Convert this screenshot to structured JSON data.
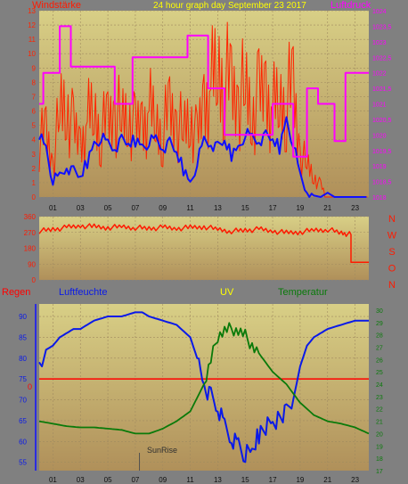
{
  "colors": {
    "background": "#808080",
    "panel_top": "#d8cf86",
    "panel_bottom": "#b0905a",
    "grid": "#a08a60",
    "wind": "#ff2400",
    "wind_avg": "#1010ff",
    "pressure": "#ff00ff",
    "direction": "#ff1a00",
    "humidity": "#0a1ae8",
    "temperature": "#0a7a0a",
    "rain": "#ff0000",
    "uv": "#ffff00",
    "title": "#ffff00"
  },
  "chart_data": [
    {
      "type": "line",
      "panel": "wind",
      "title": "24 hour graph day  September 23 2017",
      "left_label": "Windstärke",
      "right_label": "Luftdruck",
      "x_ticks": [
        "01",
        "03",
        "05",
        "07",
        "09",
        "11",
        "13",
        "15",
        "17",
        "19",
        "21",
        "23"
      ],
      "x_range": [
        0,
        24
      ],
      "y_left_ticks": [
        "0",
        "1",
        "2",
        "3",
        "4",
        "5",
        "6",
        "7",
        "8",
        "9",
        "10",
        "11",
        "12",
        "13"
      ],
      "y_left_range": [
        0,
        13
      ],
      "y_right_ticks": [
        "1018",
        "1018,5",
        "1019",
        "1019,5",
        "1020",
        "1020,5",
        "1021",
        "1021,5",
        "1022",
        "1022,5",
        "1023",
        "1023,5",
        "1024"
      ],
      "y_right_range": [
        1018,
        1024
      ],
      "grid": true,
      "series": [
        {
          "key": "gust",
          "x": [
            0,
            0.5,
            1,
            1.5,
            2,
            2.5,
            3,
            3.5,
            4,
            4.5,
            5,
            5.5,
            6,
            6.5,
            7,
            7.5,
            8,
            8.5,
            9,
            9.5,
            10,
            10.5,
            11,
            11.5,
            12,
            12.5,
            13,
            13.5,
            14,
            14.5,
            15,
            15.5,
            16,
            16.5,
            17,
            17.5,
            18,
            18.5,
            19,
            19.5,
            20,
            20.5,
            21,
            21.5,
            22,
            22.5,
            23,
            23.5,
            24
          ],
          "values": [
            5,
            6,
            3,
            8,
            9,
            6,
            5,
            7,
            8,
            6,
            7,
            8,
            7,
            8,
            6,
            7,
            8,
            7,
            6,
            8,
            7,
            6,
            8,
            5,
            9,
            10,
            12,
            11,
            10,
            9,
            10,
            8,
            9,
            10,
            8,
            9,
            9,
            10,
            4,
            3,
            2,
            1,
            0,
            0,
            0,
            0,
            0,
            0,
            0
          ]
        },
        {
          "key": "average",
          "x": [
            0,
            0.5,
            1,
            1.5,
            2,
            2.5,
            3,
            3.5,
            4,
            4.5,
            5,
            5.5,
            6,
            6.5,
            7,
            7.5,
            8,
            8.5,
            9,
            9.5,
            10,
            10.5,
            11,
            11.5,
            12,
            12.5,
            13,
            13.5,
            14,
            14.5,
            15,
            15.5,
            16,
            16.5,
            17,
            17.5,
            18,
            18.5,
            19,
            19.5,
            20,
            20.5,
            21,
            21.5,
            22,
            22.5,
            23,
            23.5,
            24
          ],
          "values": [
            4.5,
            3.5,
            1.2,
            1.5,
            2.2,
            1.8,
            1.5,
            2.5,
            3.8,
            4.2,
            3.8,
            3.5,
            4.0,
            3.8,
            4.0,
            3.6,
            3.9,
            4.1,
            3.5,
            3.8,
            3.2,
            2.0,
            1.0,
            2.5,
            4.0,
            3.8,
            3.5,
            4.0,
            3.0,
            3.5,
            4.5,
            4.2,
            4.0,
            4.3,
            4.1,
            3.5,
            5.5,
            3.8,
            1.5,
            0.5,
            0.1,
            0.0,
            0.3,
            0.0,
            0.0,
            0.0,
            0.0,
            0.0,
            0.0
          ]
        },
        {
          "key": "pressure",
          "x": [
            0,
            0.3,
            0.3,
            1.5,
            1.5,
            2.3,
            2.3,
            5.5,
            5.5,
            6.8,
            6.8,
            10.8,
            10.8,
            12.3,
            12.3,
            13.5,
            13.5,
            17.0,
            17.0,
            18.5,
            18.5,
            19.5,
            19.5,
            20.3,
            20.3,
            21.5,
            21.5,
            22.3,
            22.3,
            24
          ],
          "values": [
            1021.0,
            1021.0,
            1022.0,
            1022.0,
            1023.5,
            1023.5,
            1022.2,
            1022.2,
            1021.0,
            1021.0,
            1022.5,
            1022.5,
            1023.2,
            1023.2,
            1021.5,
            1021.5,
            1020.0,
            1020.0,
            1021.0,
            1021.0,
            1019.3,
            1019.3,
            1021.5,
            1021.5,
            1021.0,
            1021.0,
            1019.8,
            1019.8,
            1022.0,
            1022.0
          ]
        }
      ]
    },
    {
      "type": "line",
      "panel": "direction",
      "y_ticks": [
        "0",
        "90",
        "180",
        "270",
        "360"
      ],
      "y_range": [
        0,
        360
      ],
      "compass_labels": [
        "N",
        "W",
        "S",
        "O",
        "N"
      ],
      "grid": true,
      "x": [
        0,
        1,
        2,
        3,
        4,
        5,
        6,
        7,
        8,
        9,
        10,
        11,
        12,
        13,
        14,
        15,
        16,
        17,
        18,
        19,
        20,
        21,
        22,
        22.7,
        22.7,
        24
      ],
      "values": [
        280,
        290,
        300,
        310,
        305,
        300,
        305,
        300,
        295,
        300,
        295,
        300,
        305,
        290,
        280,
        285,
        290,
        280,
        270,
        275,
        285,
        290,
        270,
        260,
        100,
        100
      ]
    },
    {
      "type": "line",
      "panel": "humidity-temperature",
      "labels": {
        "rain": "Regen",
        "humidity": "Luftfeuchte",
        "uv": "UV",
        "temperature": "Temperatur"
      },
      "annotation": "SunRise",
      "annotation_x": 7.3,
      "y_left_ticks": [
        "55",
        "60",
        "65",
        "70",
        "75",
        "80",
        "85",
        "90"
      ],
      "y_left_range": [
        53,
        93
      ],
      "y_right_ticks": [
        "17",
        "18",
        "19",
        "20",
        "21",
        "22",
        "23",
        "24",
        "25",
        "26",
        "27",
        "28",
        "29",
        "30"
      ],
      "y_right_range": [
        17,
        30.5
      ],
      "rain_zero_label": "0",
      "rain_value": 0,
      "grid": true,
      "series": [
        {
          "key": "humidity",
          "x": [
            0,
            0.2,
            0.5,
            1,
            1.5,
            2,
            2.5,
            3,
            3.5,
            4,
            5,
            6,
            7,
            7.5,
            8,
            9,
            10,
            11,
            11.5,
            12,
            12.5,
            13,
            13.5,
            14,
            14.5,
            15,
            15.5,
            16,
            17,
            18,
            18.5,
            19,
            19.5,
            20,
            21,
            22,
            23,
            24
          ],
          "values": [
            79,
            78,
            82,
            83,
            85,
            86,
            87,
            87,
            88,
            89,
            90,
            90,
            91,
            91,
            90,
            89,
            88,
            85,
            80,
            74,
            71,
            68,
            64,
            61,
            60,
            57,
            58,
            62,
            65,
            67,
            70,
            78,
            83,
            85,
            87,
            88,
            89,
            89
          ]
        },
        {
          "key": "temperature",
          "x": [
            0,
            1,
            2,
            3,
            4,
            5,
            6,
            7,
            8,
            9,
            10,
            11,
            12,
            12.5,
            13,
            13.5,
            14,
            14.5,
            15,
            16,
            17,
            18,
            19,
            20,
            21,
            22,
            23,
            24
          ],
          "values": [
            21.0,
            20.8,
            20.6,
            20.5,
            20.5,
            20.4,
            20.3,
            20.0,
            20.0,
            20.4,
            21.0,
            21.8,
            24.0,
            26.0,
            28.0,
            28.4,
            28.6,
            28.4,
            28.0,
            26.5,
            25.0,
            24.0,
            22.5,
            21.5,
            21.0,
            20.8,
            20.5,
            20.0
          ]
        }
      ]
    }
  ]
}
